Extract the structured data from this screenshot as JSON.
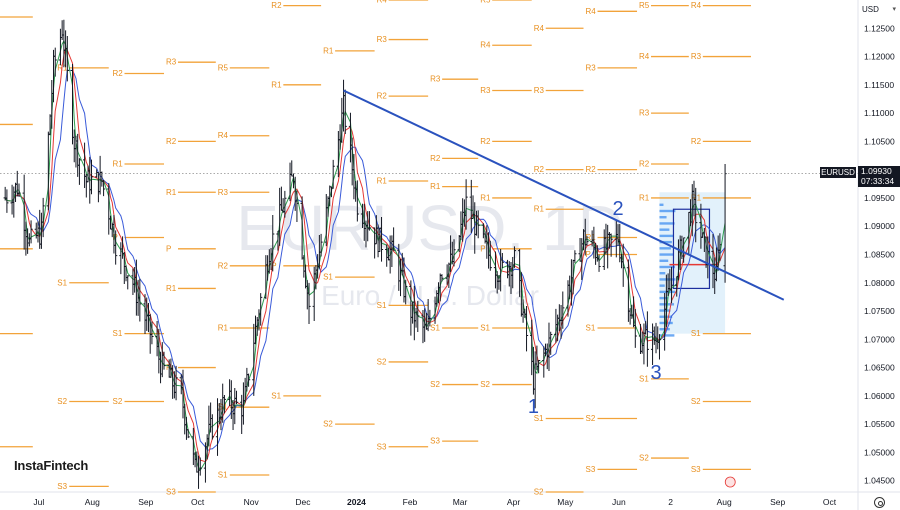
{
  "watermark": {
    "symbol": "EURUSD, 1D",
    "description": "Euro / U.S. Dollar"
  },
  "currency": "USD",
  "brand": "InstaFintech",
  "last_price": {
    "label": "EURUSD",
    "value": "1.09930",
    "countdown": "07:33:34"
  },
  "colors": {
    "background": "#ffffff",
    "bar": "#131722",
    "trendline": "#2a52be",
    "pivot": "#f2a33a",
    "pivot_text": "#e89020",
    "ma_fast": "#2e9e4f",
    "ma_mid": "#e53935",
    "ma_slow": "#3a5bd9",
    "wave_label": "#2a52be",
    "volume_profile_bg": "#dff0fb",
    "volume_profile_bars": "#3d8ef0"
  },
  "chart_data": {
    "type": "ohlc-bar",
    "timeframe": "1D",
    "ylim": [
      1.043,
      1.13
    ],
    "y_ticks": [
      "1.12500",
      "1.12000",
      "1.11500",
      "1.11000",
      "1.10500",
      "1.10000",
      "1.09500",
      "1.09000",
      "1.08500",
      "1.08000",
      "1.07500",
      "1.07000",
      "1.06500",
      "1.06000",
      "1.05500",
      "1.05000",
      "1.04500"
    ],
    "x_ticks": [
      "Jul",
      "Aug",
      "Sep",
      "Oct",
      "Nov",
      "Dec",
      "2024",
      "Feb",
      "Mar",
      "Apr",
      "May",
      "Jun",
      "2",
      "Aug",
      "Sep",
      "Oct"
    ],
    "price_path": [
      [
        "2023-06-15",
        1.095
      ],
      [
        "2023-06-22",
        1.097
      ],
      [
        "2023-06-29",
        1.087
      ],
      [
        "2023-07-06",
        1.089
      ],
      [
        "2023-07-13",
        1.118
      ],
      [
        "2023-07-18",
        1.125
      ],
      [
        "2023-07-25",
        1.105
      ],
      [
        "2023-08-01",
        1.098
      ],
      [
        "2023-08-10",
        1.098
      ],
      [
        "2023-08-18",
        1.087
      ],
      [
        "2023-08-28",
        1.08
      ],
      [
        "2023-09-06",
        1.072
      ],
      [
        "2023-09-14",
        1.065
      ],
      [
        "2023-09-25",
        1.06
      ],
      [
        "2023-10-03",
        1.047
      ],
      [
        "2023-10-12",
        1.054
      ],
      [
        "2023-10-20",
        1.059
      ],
      [
        "2023-10-31",
        1.058
      ],
      [
        "2023-11-06",
        1.07
      ],
      [
        "2023-11-15",
        1.086
      ],
      [
        "2023-11-29",
        1.099
      ],
      [
        "2023-12-08",
        1.076
      ],
      [
        "2023-12-18",
        1.092
      ],
      [
        "2023-12-28",
        1.111
      ],
      [
        "2024-01-05",
        1.094
      ],
      [
        "2024-01-16",
        1.088
      ],
      [
        "2024-01-26",
        1.085
      ],
      [
        "2024-02-05",
        1.075
      ],
      [
        "2024-02-14",
        1.071
      ],
      [
        "2024-02-22",
        1.082
      ],
      [
        "2024-03-01",
        1.084
      ],
      [
        "2024-03-08",
        1.094
      ],
      [
        "2024-03-19",
        1.086
      ],
      [
        "2024-03-27",
        1.082
      ],
      [
        "2024-04-05",
        1.084
      ],
      [
        "2024-04-16",
        1.063
      ],
      [
        "2024-04-26",
        1.07
      ],
      [
        "2024-05-03",
        1.076
      ],
      [
        "2024-05-15",
        1.088
      ],
      [
        "2024-05-24",
        1.085
      ],
      [
        "2024-06-04",
        1.088
      ],
      [
        "2024-06-14",
        1.07
      ],
      [
        "2024-06-26",
        1.07
      ],
      [
        "2024-07-08",
        1.083
      ],
      [
        "2024-07-17",
        1.094
      ],
      [
        "2024-07-25",
        1.085
      ],
      [
        "2024-07-31",
        1.081
      ],
      [
        "2024-08-05",
        1.0993
      ]
    ],
    "trendline": [
      [
        "2023-12-28",
        1.114
      ],
      [
        "2024-09-08",
        1.077
      ]
    ],
    "wave_labels": [
      {
        "text": "1",
        "date": "2024-04-16",
        "price": 1.057
      },
      {
        "text": "2",
        "date": "2024-06-04",
        "price": 1.092
      },
      {
        "text": "3",
        "date": "2024-06-26",
        "price": 1.063
      }
    ],
    "pivot_levels": [
      {
        "label": "R2",
        "price": 1.127,
        "x0": "2023-06-01",
        "x1": "2023-07-01"
      },
      {
        "label": "R1",
        "price": 1.118,
        "x0": "2023-07-14",
        "x1": "2023-08-14"
      },
      {
        "label": "R1",
        "price": 1.108,
        "x0": "2023-06-01",
        "x1": "2023-07-01"
      },
      {
        "label": "P",
        "price": 1.086,
        "x0": "2023-06-01",
        "x1": "2023-07-01"
      },
      {
        "label": "S1",
        "price": 1.08,
        "x0": "2023-07-14",
        "x1": "2023-08-14"
      },
      {
        "label": "S1",
        "price": 1.071,
        "x0": "2023-06-01",
        "x1": "2023-07-01"
      },
      {
        "label": "S2",
        "price": 1.059,
        "x0": "2023-07-14",
        "x1": "2023-08-14"
      },
      {
        "label": "S2",
        "price": 1.051,
        "x0": "2023-06-01",
        "x1": "2023-07-01"
      },
      {
        "label": "S3",
        "price": 1.044,
        "x0": "2023-07-14",
        "x1": "2023-08-14"
      },
      {
        "label": "R2",
        "price": 1.117,
        "x0": "2023-08-15",
        "x1": "2023-09-15"
      },
      {
        "label": "R1",
        "price": 1.101,
        "x0": "2023-08-15",
        "x1": "2023-09-15"
      },
      {
        "label": "P",
        "price": 1.088,
        "x0": "2023-08-15",
        "x1": "2023-09-15"
      },
      {
        "label": "S1",
        "price": 1.071,
        "x0": "2023-08-15",
        "x1": "2023-09-15"
      },
      {
        "label": "S2",
        "price": 1.059,
        "x0": "2023-08-15",
        "x1": "2023-09-15"
      },
      {
        "label": "R3",
        "price": 1.119,
        "x0": "2023-09-15",
        "x1": "2023-10-15"
      },
      {
        "label": "R2",
        "price": 1.105,
        "x0": "2023-09-15",
        "x1": "2023-10-15"
      },
      {
        "label": "R1",
        "price": 1.096,
        "x0": "2023-09-15",
        "x1": "2023-10-15"
      },
      {
        "label": "P",
        "price": 1.086,
        "x0": "2023-09-15",
        "x1": "2023-10-15"
      },
      {
        "label": "R1",
        "price": 1.079,
        "x0": "2023-09-15",
        "x1": "2023-10-15"
      },
      {
        "label": "P",
        "price": 1.065,
        "x0": "2023-09-15",
        "x1": "2023-10-15"
      },
      {
        "label": "S1",
        "price": 1.046,
        "x0": "2023-10-15",
        "x1": "2023-11-15"
      },
      {
        "label": "S3",
        "price": 1.043,
        "x0": "2023-09-15",
        "x1": "2023-10-15"
      },
      {
        "label": "R5",
        "price": 1.118,
        "x0": "2023-10-15",
        "x1": "2023-11-15"
      },
      {
        "label": "R4",
        "price": 1.106,
        "x0": "2023-10-15",
        "x1": "2023-11-15"
      },
      {
        "label": "R3",
        "price": 1.096,
        "x0": "2023-10-15",
        "x1": "2023-11-15"
      },
      {
        "label": "R2",
        "price": 1.083,
        "x0": "2023-10-15",
        "x1": "2023-11-15"
      },
      {
        "label": "R1",
        "price": 1.072,
        "x0": "2023-10-15",
        "x1": "2023-11-15"
      },
      {
        "label": "S1",
        "price": 1.058,
        "x0": "2023-10-15",
        "x1": "2023-11-15"
      },
      {
        "label": "R2",
        "price": 1.129,
        "x0": "2023-11-15",
        "x1": "2023-12-15"
      },
      {
        "label": "R1",
        "price": 1.115,
        "x0": "2023-11-15",
        "x1": "2023-12-15"
      },
      {
        "label": "P",
        "price": 1.083,
        "x0": "2023-11-15",
        "x1": "2023-12-15"
      },
      {
        "label": "S1",
        "price": 1.06,
        "x0": "2023-11-15",
        "x1": "2023-12-15"
      },
      {
        "label": "R1",
        "price": 1.121,
        "x0": "2023-12-15",
        "x1": "2024-01-15"
      },
      {
        "label": "S1",
        "price": 1.081,
        "x0": "2023-12-15",
        "x1": "2024-01-15"
      },
      {
        "label": "S2",
        "price": 1.055,
        "x0": "2023-12-15",
        "x1": "2024-01-15"
      },
      {
        "label": "R4",
        "price": 1.13,
        "x0": "2024-01-15",
        "x1": "2024-02-15"
      },
      {
        "label": "R3",
        "price": 1.123,
        "x0": "2024-01-15",
        "x1": "2024-02-15"
      },
      {
        "label": "R2",
        "price": 1.113,
        "x0": "2024-01-15",
        "x1": "2024-02-15"
      },
      {
        "label": "R1",
        "price": 1.098,
        "x0": "2024-01-15",
        "x1": "2024-02-15"
      },
      {
        "label": "S1",
        "price": 1.076,
        "x0": "2024-01-15",
        "x1": "2024-02-15"
      },
      {
        "label": "S2",
        "price": 1.066,
        "x0": "2024-01-15",
        "x1": "2024-02-15"
      },
      {
        "label": "S3",
        "price": 1.051,
        "x0": "2024-01-15",
        "x1": "2024-02-15"
      },
      {
        "label": "R3",
        "price": 1.116,
        "x0": "2024-02-15",
        "x1": "2024-03-15"
      },
      {
        "label": "R2",
        "price": 1.102,
        "x0": "2024-02-15",
        "x1": "2024-03-15"
      },
      {
        "label": "R1",
        "price": 1.097,
        "x0": "2024-02-15",
        "x1": "2024-03-15"
      },
      {
        "label": "S1",
        "price": 1.072,
        "x0": "2024-02-15",
        "x1": "2024-03-15"
      },
      {
        "label": "S2",
        "price": 1.062,
        "x0": "2024-02-15",
        "x1": "2024-03-15"
      },
      {
        "label": "S3",
        "price": 1.052,
        "x0": "2024-02-15",
        "x1": "2024-03-15"
      },
      {
        "label": "R5",
        "price": 1.13,
        "x0": "2024-03-15",
        "x1": "2024-04-15"
      },
      {
        "label": "R4",
        "price": 1.122,
        "x0": "2024-03-15",
        "x1": "2024-04-15"
      },
      {
        "label": "R3",
        "price": 1.114,
        "x0": "2024-03-15",
        "x1": "2024-04-15"
      },
      {
        "label": "R2",
        "price": 1.105,
        "x0": "2024-03-15",
        "x1": "2024-04-15"
      },
      {
        "label": "R1",
        "price": 1.095,
        "x0": "2024-03-15",
        "x1": "2024-04-15"
      },
      {
        "label": "P",
        "price": 1.086,
        "x0": "2024-03-15",
        "x1": "2024-04-15"
      },
      {
        "label": "S1",
        "price": 1.072,
        "x0": "2024-03-15",
        "x1": "2024-04-15"
      },
      {
        "label": "S2",
        "price": 1.062,
        "x0": "2024-03-15",
        "x1": "2024-04-15"
      },
      {
        "label": "R4",
        "price": 1.125,
        "x0": "2024-04-15",
        "x1": "2024-05-15"
      },
      {
        "label": "R3",
        "price": 1.114,
        "x0": "2024-04-15",
        "x1": "2024-05-15"
      },
      {
        "label": "R2",
        "price": 1.1,
        "x0": "2024-04-15",
        "x1": "2024-05-15"
      },
      {
        "label": "R1",
        "price": 1.093,
        "x0": "2024-04-15",
        "x1": "2024-05-15"
      },
      {
        "label": "S1",
        "price": 1.056,
        "x0": "2024-04-15",
        "x1": "2024-05-15"
      },
      {
        "label": "S2",
        "price": 1.043,
        "x0": "2024-04-15",
        "x1": "2024-05-15"
      },
      {
        "label": "R4",
        "price": 1.128,
        "x0": "2024-05-15",
        "x1": "2024-06-15"
      },
      {
        "label": "R3",
        "price": 1.118,
        "x0": "2024-05-15",
        "x1": "2024-06-15"
      },
      {
        "label": "R2",
        "price": 1.1,
        "x0": "2024-05-15",
        "x1": "2024-06-15"
      },
      {
        "label": "R1",
        "price": 1.088,
        "x0": "2024-05-15",
        "x1": "2024-06-15"
      },
      {
        "label": "P",
        "price": 1.085,
        "x0": "2024-05-15",
        "x1": "2024-06-15"
      },
      {
        "label": "S1",
        "price": 1.072,
        "x0": "2024-05-15",
        "x1": "2024-06-15"
      },
      {
        "label": "S2",
        "price": 1.056,
        "x0": "2024-05-15",
        "x1": "2024-06-15"
      },
      {
        "label": "S3",
        "price": 1.047,
        "x0": "2024-05-15",
        "x1": "2024-06-15"
      },
      {
        "label": "R5",
        "price": 1.129,
        "x0": "2024-06-15",
        "x1": "2024-07-15"
      },
      {
        "label": "R4",
        "price": 1.12,
        "x0": "2024-06-15",
        "x1": "2024-07-15"
      },
      {
        "label": "R3",
        "price": 1.11,
        "x0": "2024-06-15",
        "x1": "2024-07-15"
      },
      {
        "label": "R2",
        "price": 1.101,
        "x0": "2024-06-15",
        "x1": "2024-07-15"
      },
      {
        "label": "R1",
        "price": 1.095,
        "x0": "2024-06-15",
        "x1": "2024-07-15"
      },
      {
        "label": "S1",
        "price": 1.063,
        "x0": "2024-06-15",
        "x1": "2024-07-15"
      },
      {
        "label": "S2",
        "price": 1.049,
        "x0": "2024-06-15",
        "x1": "2024-07-15"
      },
      {
        "label": "R4",
        "price": 1.129,
        "x0": "2024-07-15",
        "x1": "2024-08-20"
      },
      {
        "label": "R3",
        "price": 1.12,
        "x0": "2024-07-15",
        "x1": "2024-08-20"
      },
      {
        "label": "R2",
        "price": 1.105,
        "x0": "2024-07-15",
        "x1": "2024-08-20"
      },
      {
        "label": "R1",
        "price": 1.095,
        "x0": "2024-07-15",
        "x1": "2024-08-20"
      },
      {
        "label": "S1",
        "price": 1.071,
        "x0": "2024-07-15",
        "x1": "2024-08-20"
      },
      {
        "label": "S2",
        "price": 1.059,
        "x0": "2024-07-15",
        "x1": "2024-08-20"
      },
      {
        "label": "S3",
        "price": 1.047,
        "x0": "2024-07-15",
        "x1": "2024-08-20"
      }
    ]
  }
}
